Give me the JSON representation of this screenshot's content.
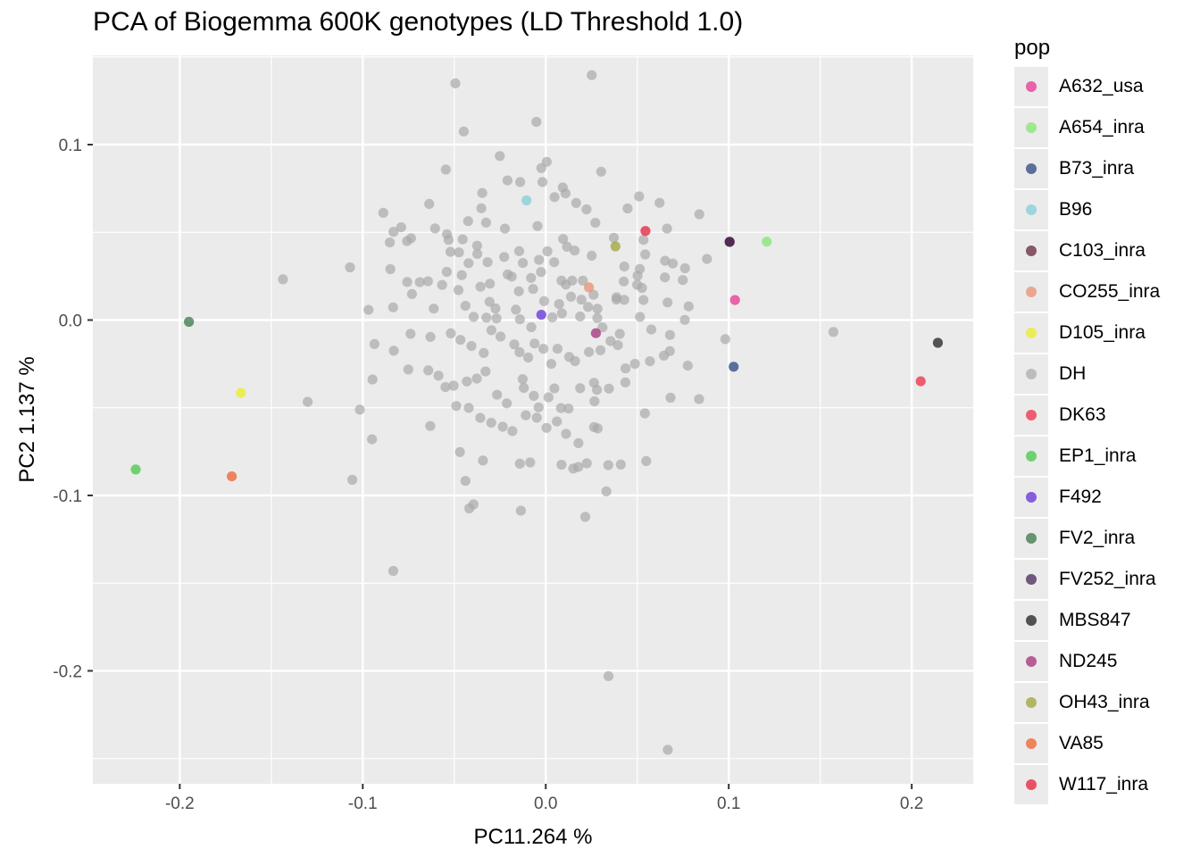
{
  "chart_data": {
    "type": "scatter",
    "title": "PCA of Biogemma 600K genotypes (LD Threshold 1.0)",
    "xlabel": "PC11.264 %",
    "ylabel": "PC2 1.137 %",
    "xlim": [
      -0.2475,
      0.2336
    ],
    "ylim": [
      -0.2644,
      0.1509
    ],
    "x_ticks": [
      -0.2,
      -0.1,
      0.0,
      0.1,
      0.2
    ],
    "x_tick_labels": [
      "-0.2",
      "-0.1",
      "0.0",
      "0.1",
      "0.2"
    ],
    "y_ticks": [
      -0.2,
      -0.1,
      0.0,
      0.1
    ],
    "y_tick_labels": [
      "-0.2",
      "-0.1",
      "0.0",
      "0.1"
    ],
    "grid": true,
    "legend_title": "pop",
    "legend_position": "right",
    "series": [
      {
        "name": "A632_usa",
        "color": "#e7298a",
        "points": [
          [
            0.1034,
            0.0114
          ]
        ]
      },
      {
        "name": "A654_inra",
        "color": "#7ee56a",
        "points": [
          [
            0.1208,
            0.0447
          ]
        ]
      },
      {
        "name": "B73_inra",
        "color": "#1f3a7a",
        "points": [
          [
            0.1027,
            -0.0266
          ]
        ]
      },
      {
        "name": "B96",
        "color": "#7ecbd9",
        "points": [
          [
            -0.0105,
            0.0682
          ]
        ]
      },
      {
        "name": "C103_inra",
        "color": "#5a1a2e",
        "points": [
          [
            0.1005,
            0.0447
          ]
        ]
      },
      {
        "name": "CO255_inra",
        "color": "#e88a6a",
        "points": [
          [
            0.0236,
            0.0186
          ]
        ]
      },
      {
        "name": "D105_inra",
        "color": "#e8f01a",
        "points": [
          [
            -0.1666,
            -0.0415
          ]
        ]
      },
      {
        "name": "DH",
        "color": "#a9a9a9",
        "points": [
          [
            -0.0494,
            0.1349
          ],
          [
            0.0251,
            0.1396
          ],
          [
            -0.0051,
            0.113
          ],
          [
            -0.0448,
            0.1075
          ],
          [
            0.0005,
            0.0902
          ],
          [
            -0.0251,
            0.0935
          ],
          [
            0.0303,
            0.0846
          ],
          [
            -0.0209,
            0.0796
          ],
          [
            -0.014,
            0.0787
          ],
          [
            -0.0024,
            0.0866
          ],
          [
            -0.0018,
            0.0787
          ],
          [
            0.0093,
            0.0756
          ],
          [
            -0.0347,
            0.0724
          ],
          [
            -0.0546,
            0.0858
          ],
          [
            -0.0637,
            0.0662
          ],
          [
            0.0108,
            0.0722
          ],
          [
            0.0048,
            0.0701
          ],
          [
            0.051,
            0.0705
          ],
          [
            0.0622,
            0.0668
          ],
          [
            0.0447,
            0.0636
          ],
          [
            0.0223,
            0.0631
          ],
          [
            0.0166,
            0.0667
          ],
          [
            -0.0424,
            0.0564
          ],
          [
            -0.0352,
            0.0637
          ],
          [
            -0.0454,
            0.046
          ],
          [
            -0.0326,
            0.0555
          ],
          [
            -0.0223,
            0.0521
          ],
          [
            -0.0045,
            0.0536
          ],
          [
            0.0095,
            0.0462
          ],
          [
            0.0271,
            0.0554
          ],
          [
            0.0372,
            0.0469
          ],
          [
            0.0534,
            0.0457
          ],
          [
            0.0663,
            0.0521
          ],
          [
            0.0839,
            0.0603
          ],
          [
            -0.0888,
            0.0611
          ],
          [
            -0.079,
            0.0529
          ],
          [
            -0.0832,
            0.0503
          ],
          [
            -0.0736,
            0.0466
          ],
          [
            -0.0758,
            0.045
          ],
          [
            -0.0852,
            0.0442
          ],
          [
            -0.0605,
            0.0522
          ],
          [
            -0.054,
            0.0489
          ],
          [
            -0.0531,
            0.0457
          ],
          [
            -0.0474,
            0.0386
          ],
          [
            -0.0521,
            0.0389
          ],
          [
            -0.0375,
            0.0424
          ],
          [
            -0.0374,
            0.0377
          ],
          [
            -0.0318,
            0.033
          ],
          [
            -0.0227,
            0.036
          ],
          [
            -0.0145,
            0.0393
          ],
          [
            -0.0125,
            0.0325
          ],
          [
            -0.0037,
            0.0343
          ],
          [
            0.0009,
            0.0392
          ],
          [
            0.0046,
            0.033
          ],
          [
            0.0116,
            0.0418
          ],
          [
            0.0158,
            0.0396
          ],
          [
            0.0251,
            0.0367
          ],
          [
            0.0429,
            0.0305
          ],
          [
            0.0514,
            0.0291
          ],
          [
            0.0544,
            0.0374
          ],
          [
            0.0652,
            0.0338
          ],
          [
            0.0694,
            0.0322
          ],
          [
            0.0761,
            0.0295
          ],
          [
            0.0881,
            0.0348
          ],
          [
            -0.107,
            0.03
          ],
          [
            -0.0849,
            0.029
          ],
          [
            -0.0644,
            0.0221
          ],
          [
            -0.0541,
            0.0275
          ],
          [
            -0.0459,
            0.0256
          ],
          [
            -0.0422,
            0.0324
          ],
          [
            -0.0305,
            0.0207
          ],
          [
            -0.0208,
            0.026
          ],
          [
            -0.0186,
            0.0248
          ],
          [
            -0.008,
            0.024
          ],
          [
            -0.0026,
            0.0274
          ],
          [
            0.0086,
            0.0225
          ],
          [
            0.011,
            0.0202
          ],
          [
            0.0144,
            0.0225
          ],
          [
            0.0203,
            0.0225
          ],
          [
            0.0261,
            0.0144
          ],
          [
            0.0387,
            0.013
          ],
          [
            0.0426,
            0.022
          ],
          [
            0.0502,
            0.0253
          ],
          [
            0.0526,
            0.0183
          ],
          [
            0.0651,
            0.0243
          ],
          [
            0.0749,
            0.0228
          ],
          [
            -0.0757,
            0.0217
          ],
          [
            -0.0688,
            0.0216
          ],
          [
            -0.0566,
            0.02
          ],
          [
            -0.0477,
            0.0171
          ],
          [
            -0.0357,
            0.019
          ],
          [
            -0.0307,
            0.0104
          ],
          [
            -0.0275,
            0.0066
          ],
          [
            -0.0147,
            0.0164
          ],
          [
            -0.0069,
            0.0177
          ],
          [
            -0.0009,
            0.0108
          ],
          [
            0.0073,
            0.0091
          ],
          [
            0.0138,
            0.0133
          ],
          [
            0.0195,
            0.0116
          ],
          [
            0.0283,
            0.0064
          ],
          [
            0.0386,
            0.0117
          ],
          [
            0.0429,
            0.0115
          ],
          [
            0.05,
            0.0201
          ],
          [
            0.0534,
            0.0114
          ],
          [
            0.0666,
            0.01
          ],
          [
            0.0781,
            0.0078
          ],
          [
            -0.0731,
            0.0148
          ],
          [
            -0.0834,
            0.0072
          ],
          [
            -0.0969,
            0.0058
          ],
          [
            -0.0612,
            0.0065
          ],
          [
            -0.0439,
            0.0081
          ],
          [
            -0.0394,
            0.0018
          ],
          [
            -0.0324,
            0.0013
          ],
          [
            -0.0269,
            0.0009
          ],
          [
            -0.0163,
            0.0059
          ],
          [
            -0.0141,
            0.0004
          ],
          [
            -0.0079,
            -0.0041
          ],
          [
            0.0036,
            0.0015
          ],
          [
            0.0088,
            0.0038
          ],
          [
            0.0188,
            0.002
          ],
          [
            0.0231,
            0.0075
          ],
          [
            0.0282,
            0.0011
          ],
          [
            0.031,
            -0.0042
          ],
          [
            0.0405,
            -0.0079
          ],
          [
            0.0515,
            0.0018
          ],
          [
            0.0577,
            -0.0054
          ],
          [
            0.0679,
            -0.0085
          ],
          [
            0.076,
            0.0001
          ],
          [
            0.0981,
            -0.0109
          ],
          [
            0.1572,
            -0.0068
          ],
          [
            -0.0936,
            -0.0137
          ],
          [
            -0.083,
            -0.0175
          ],
          [
            -0.0739,
            -0.0079
          ],
          [
            -0.063,
            -0.0096
          ],
          [
            -0.0519,
            -0.0076
          ],
          [
            -0.0466,
            -0.0113
          ],
          [
            -0.0406,
            -0.0148
          ],
          [
            -0.0339,
            -0.0188
          ],
          [
            -0.0297,
            -0.0058
          ],
          [
            -0.0247,
            -0.0094
          ],
          [
            -0.0172,
            -0.0139
          ],
          [
            -0.0143,
            -0.0183
          ],
          [
            -0.0096,
            -0.0214
          ],
          [
            -0.0061,
            -0.0134
          ],
          [
            -0.0013,
            -0.0164
          ],
          [
            0.003,
            -0.025
          ],
          [
            0.0064,
            -0.0164
          ],
          [
            0.0128,
            -0.021
          ],
          [
            0.016,
            -0.0234
          ],
          [
            0.0236,
            -0.0182
          ],
          [
            0.0299,
            -0.0172
          ],
          [
            0.0354,
            -0.012
          ],
          [
            0.0394,
            -0.0143
          ],
          [
            0.0436,
            -0.0276
          ],
          [
            0.0487,
            -0.025
          ],
          [
            0.0569,
            -0.0235
          ],
          [
            0.0646,
            -0.0203
          ],
          [
            0.0678,
            -0.0177
          ],
          [
            0.0776,
            -0.026
          ],
          [
            -0.0947,
            -0.0339
          ],
          [
            -0.0751,
            -0.0282
          ],
          [
            -0.0642,
            -0.0287
          ],
          [
            -0.0586,
            -0.0317
          ],
          [
            -0.0548,
            -0.0382
          ],
          [
            -0.0504,
            -0.0374
          ],
          [
            -0.0431,
            -0.035
          ],
          [
            -0.0377,
            -0.0334
          ],
          [
            -0.0329,
            -0.0293
          ],
          [
            -0.0266,
            -0.0426
          ],
          [
            -0.0213,
            -0.0475
          ],
          [
            -0.0126,
            -0.0337
          ],
          [
            -0.012,
            -0.0387
          ],
          [
            -0.0065,
            -0.0432
          ],
          [
            -0.0039,
            -0.0498
          ],
          [
            0.0015,
            -0.0441
          ],
          [
            0.0047,
            -0.039
          ],
          [
            0.0083,
            -0.0502
          ],
          [
            0.0124,
            -0.0505
          ],
          [
            0.0188,
            -0.0389
          ],
          [
            0.0264,
            -0.0358
          ],
          [
            0.0266,
            -0.0463
          ],
          [
            0.028,
            -0.0398
          ],
          [
            0.0345,
            -0.0391
          ],
          [
            0.0435,
            -0.0356
          ],
          [
            0.0542,
            -0.0532
          ],
          [
            0.0682,
            -0.0443
          ],
          [
            0.0838,
            -0.0451
          ],
          [
            -0.1301,
            -0.0466
          ],
          [
            -0.1016,
            -0.0511
          ],
          [
            -0.0631,
            -0.0604
          ],
          [
            -0.0489,
            -0.049
          ],
          [
            -0.0421,
            -0.0501
          ],
          [
            -0.0358,
            -0.0558
          ],
          [
            -0.0298,
            -0.0586
          ],
          [
            -0.0235,
            -0.0608
          ],
          [
            -0.0182,
            -0.0633
          ],
          [
            -0.0109,
            -0.0543
          ],
          [
            -0.0049,
            -0.0557
          ],
          [
            0.0004,
            -0.0615
          ],
          [
            0.0061,
            -0.0578
          ],
          [
            0.0111,
            -0.0649
          ],
          [
            0.0179,
            -0.0702
          ],
          [
            0.0264,
            -0.061
          ],
          [
            0.0284,
            -0.0618
          ],
          [
            -0.0949,
            -0.068
          ],
          [
            -0.0469,
            -0.0753
          ],
          [
            -0.0343,
            -0.0801
          ],
          [
            -0.0141,
            -0.0819
          ],
          [
            -0.0085,
            -0.0812
          ],
          [
            0.0086,
            -0.0825
          ],
          [
            0.015,
            -0.0847
          ],
          [
            0.0178,
            -0.0838
          ],
          [
            0.0224,
            -0.0817
          ],
          [
            0.0342,
            -0.0827
          ],
          [
            0.041,
            -0.0824
          ],
          [
            0.0549,
            -0.0804
          ],
          [
            -0.1057,
            -0.0911
          ],
          [
            -0.0439,
            -0.0917
          ],
          [
            -0.0395,
            -0.1051
          ],
          [
            -0.0418,
            -0.1074
          ],
          [
            -0.0136,
            -0.1087
          ],
          [
            0.0216,
            -0.1122
          ],
          [
            0.0331,
            -0.0977
          ],
          [
            -0.0833,
            -0.143
          ],
          [
            0.0343,
            -0.203
          ],
          [
            0.0667,
            -0.245
          ],
          [
            -0.1436,
            0.0232
          ]
        ]
      },
      {
        "name": "DK63",
        "color": "#f0213a",
        "points": [
          [
            0.2049,
            -0.0349
          ]
        ]
      },
      {
        "name": "EP1_inra",
        "color": "#3cc43c",
        "points": [
          [
            -0.2241,
            -0.0852
          ]
        ]
      },
      {
        "name": "F492",
        "color": "#5a22d8",
        "points": [
          [
            -0.0024,
            0.003
          ]
        ]
      },
      {
        "name": "FV2_inra",
        "color": "#2e6e3e",
        "points": [
          [
            -0.195,
            -0.001
          ]
        ]
      },
      {
        "name": "FV252_inra",
        "color": "#3a1850",
        "points": [
          [
            0.1005,
            0.0445
          ]
        ]
      },
      {
        "name": "MBS847",
        "color": "#111111",
        "points": [
          [
            0.2143,
            -0.013
          ]
        ]
      },
      {
        "name": "ND245",
        "color": "#a0226e",
        "points": [
          [
            0.0274,
            -0.0075
          ]
        ]
      },
      {
        "name": "OH43_inra",
        "color": "#9aa02a",
        "points": [
          [
            0.0381,
            0.042
          ]
        ]
      },
      {
        "name": "VA85",
        "color": "#ee5822",
        "points": [
          [
            -0.1716,
            -0.0891
          ]
        ]
      },
      {
        "name": "W117_inra",
        "color": "#e8112d",
        "points": [
          [
            0.0545,
            0.0508
          ]
        ]
      }
    ]
  }
}
